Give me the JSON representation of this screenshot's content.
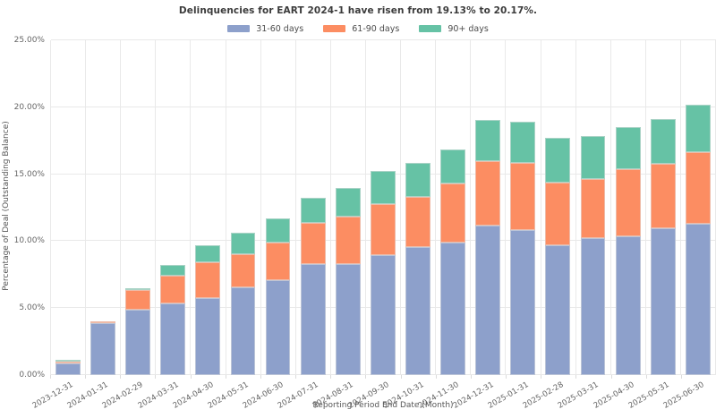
{
  "title": "Delinquencies for EART 2024-1 have risen from 19.13% to 20.17%.",
  "legend": {
    "items": [
      {
        "label": "31-60 days",
        "color": "#8da0cb"
      },
      {
        "label": "61-90 days",
        "color": "#fc8d62"
      },
      {
        "label": "90+ days",
        "color": "#66c2a5"
      }
    ]
  },
  "axes": {
    "y_label": "Percentage of Deal (Outstanding Balance)",
    "x_label": "Reporting Period End Date (Month)",
    "y_ticks": [
      "0.00%",
      "5.00%",
      "10.00%",
      "15.00%",
      "20.00%",
      "25.00%"
    ]
  },
  "colors": {
    "background": "#ffffff",
    "gridline": "#e9e9e9",
    "tick_text": "#666666",
    "title_text": "#3b3b3b"
  },
  "chart_data": {
    "type": "bar",
    "stacked": true,
    "title": "Delinquencies for EART 2024-1 have risen from 19.13% to 20.17%.",
    "xlabel": "Reporting Period End Date (Month)",
    "ylabel": "Percentage of Deal (Outstanding Balance)",
    "ylim": [
      0,
      25
    ],
    "grid": true,
    "legend_position": "top",
    "categories": [
      "2023-12-31",
      "2024-01-31",
      "2024-02-29",
      "2024-03-31",
      "2024-04-30",
      "2024-05-31",
      "2024-06-30",
      "2024-07-31",
      "2024-08-31",
      "2024-09-30",
      "2024-10-31",
      "2024-11-30",
      "2024-12-31",
      "2025-01-31",
      "2025-02-28",
      "2025-03-31",
      "2025-04-30",
      "2025-05-31",
      "2025-06-30"
    ],
    "series": [
      {
        "name": "31-60 days",
        "color": "#8da0cb",
        "values": [
          0.87,
          3.85,
          4.9,
          5.33,
          5.78,
          6.53,
          7.09,
          8.31,
          8.29,
          8.93,
          9.55,
          9.87,
          11.18,
          10.82,
          9.67,
          10.25,
          10.38,
          10.95,
          11.29
        ]
      },
      {
        "name": "61-90 days",
        "color": "#fc8d62",
        "values": [
          0.16,
          0.13,
          1.43,
          2.07,
          2.64,
          2.52,
          2.78,
          3.07,
          3.56,
          3.82,
          3.76,
          4.44,
          4.8,
          5.03,
          4.71,
          4.4,
          5.0,
          4.85,
          5.36
        ]
      },
      {
        "name": "90+ days",
        "color": "#66c2a5",
        "values": [
          0.12,
          0.0,
          0.05,
          0.82,
          1.27,
          1.57,
          1.82,
          1.84,
          2.15,
          2.47,
          2.54,
          2.51,
          3.07,
          3.08,
          3.31,
          3.2,
          3.17,
          3.33,
          3.52
        ]
      }
    ],
    "totals": [
      1.15,
      3.98,
      6.38,
      8.22,
      9.69,
      10.62,
      11.69,
      13.22,
      14.0,
      15.22,
      15.85,
      16.82,
      19.05,
      18.93,
      17.69,
      17.85,
      18.55,
      19.13,
      20.17
    ]
  }
}
